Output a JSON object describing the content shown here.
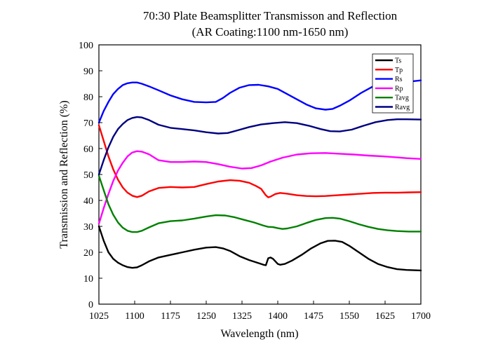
{
  "chart_data": {
    "type": "line",
    "title": "70:30 Plate Beamsplitter Transmisson and Reflection",
    "subtitle": "(AR Coating:1100 nm-1650 nm)",
    "xlabel": "Wavelength (nm)",
    "ylabel": "Transmission and Reflection (%)",
    "xlim": [
      1025,
      1700
    ],
    "ylim": [
      0,
      100
    ],
    "x_ticks": [
      "1025",
      "1100",
      "1175",
      "1250",
      "1325",
      "1400",
      "1475",
      "1550",
      "1625",
      "1700"
    ],
    "y_ticks": [
      "0",
      "10",
      "20",
      "30",
      "40",
      "50",
      "60",
      "70",
      "80",
      "90",
      "100"
    ],
    "grid": false,
    "legend_position": "top-right",
    "series": [
      {
        "name": "Ts",
        "color": "#000000",
        "points": [
          [
            1025,
            30
          ],
          [
            1035,
            24.5
          ],
          [
            1045,
            20
          ],
          [
            1055,
            17.5
          ],
          [
            1065,
            16
          ],
          [
            1075,
            15
          ],
          [
            1085,
            14.3
          ],
          [
            1095,
            14
          ],
          [
            1105,
            14.2
          ],
          [
            1115,
            15
          ],
          [
            1130,
            16.5
          ],
          [
            1150,
            18
          ],
          [
            1175,
            19
          ],
          [
            1200,
            20
          ],
          [
            1225,
            21
          ],
          [
            1250,
            21.8
          ],
          [
            1270,
            22
          ],
          [
            1285,
            21.5
          ],
          [
            1300,
            20.5
          ],
          [
            1320,
            18.5
          ],
          [
            1340,
            17
          ],
          [
            1360,
            15.8
          ],
          [
            1370,
            15.2
          ],
          [
            1375,
            15
          ],
          [
            1380,
            17.7
          ],
          [
            1385,
            18
          ],
          [
            1390,
            17.5
          ],
          [
            1395,
            16.5
          ],
          [
            1400,
            15.5
          ],
          [
            1405,
            15.2
          ],
          [
            1415,
            15.5
          ],
          [
            1430,
            16.8
          ],
          [
            1450,
            19
          ],
          [
            1470,
            21.5
          ],
          [
            1490,
            23.5
          ],
          [
            1505,
            24.4
          ],
          [
            1520,
            24.5
          ],
          [
            1535,
            24
          ],
          [
            1550,
            22.5
          ],
          [
            1570,
            20
          ],
          [
            1590,
            17.5
          ],
          [
            1610,
            15.5
          ],
          [
            1630,
            14.3
          ],
          [
            1650,
            13.5
          ],
          [
            1670,
            13.2
          ],
          [
            1700,
            13
          ]
        ]
      },
      {
        "name": "Tp",
        "color": "#ff0000",
        "points": [
          [
            1025,
            69
          ],
          [
            1035,
            63
          ],
          [
            1045,
            57
          ],
          [
            1055,
            52
          ],
          [
            1065,
            48
          ],
          [
            1075,
            45
          ],
          [
            1085,
            43
          ],
          [
            1095,
            41.8
          ],
          [
            1105,
            41.3
          ],
          [
            1115,
            41.8
          ],
          [
            1130,
            43.5
          ],
          [
            1150,
            44.8
          ],
          [
            1175,
            45.2
          ],
          [
            1200,
            45
          ],
          [
            1225,
            45.2
          ],
          [
            1250,
            46.3
          ],
          [
            1275,
            47.3
          ],
          [
            1300,
            47.8
          ],
          [
            1320,
            47.6
          ],
          [
            1340,
            46.8
          ],
          [
            1355,
            45.5
          ],
          [
            1365,
            44.5
          ],
          [
            1375,
            42
          ],
          [
            1380,
            41.2
          ],
          [
            1385,
            41.5
          ],
          [
            1395,
            42.5
          ],
          [
            1405,
            42.9
          ],
          [
            1420,
            42.6
          ],
          [
            1440,
            42
          ],
          [
            1460,
            41.7
          ],
          [
            1480,
            41.6
          ],
          [
            1500,
            41.7
          ],
          [
            1525,
            42
          ],
          [
            1550,
            42.3
          ],
          [
            1575,
            42.6
          ],
          [
            1600,
            42.9
          ],
          [
            1625,
            43
          ],
          [
            1650,
            43
          ],
          [
            1675,
            43.1
          ],
          [
            1700,
            43.2
          ]
        ]
      },
      {
        "name": "Rs",
        "color": "#0000ff",
        "points": [
          [
            1025,
            70
          ],
          [
            1035,
            74.5
          ],
          [
            1045,
            78
          ],
          [
            1055,
            81
          ],
          [
            1065,
            83
          ],
          [
            1075,
            84.5
          ],
          [
            1085,
            85.2
          ],
          [
            1095,
            85.5
          ],
          [
            1105,
            85.5
          ],
          [
            1115,
            85
          ],
          [
            1130,
            84
          ],
          [
            1150,
            82.5
          ],
          [
            1175,
            80.5
          ],
          [
            1200,
            79
          ],
          [
            1225,
            78
          ],
          [
            1250,
            77.8
          ],
          [
            1270,
            78
          ],
          [
            1285,
            79.5
          ],
          [
            1300,
            81.5
          ],
          [
            1320,
            83.5
          ],
          [
            1340,
            84.5
          ],
          [
            1360,
            84.6
          ],
          [
            1380,
            84
          ],
          [
            1400,
            83
          ],
          [
            1420,
            81
          ],
          [
            1440,
            79
          ],
          [
            1460,
            77
          ],
          [
            1480,
            75.5
          ],
          [
            1500,
            75
          ],
          [
            1515,
            75.3
          ],
          [
            1530,
            76.5
          ],
          [
            1550,
            78.5
          ],
          [
            1575,
            81.5
          ],
          [
            1600,
            84
          ],
          [
            1625,
            85.5
          ],
          [
            1650,
            86.2
          ],
          [
            1670,
            86.2
          ],
          [
            1685,
            86
          ],
          [
            1700,
            86.3
          ]
        ]
      },
      {
        "name": "Rp",
        "color": "#ff00ff",
        "points": [
          [
            1025,
            31
          ],
          [
            1035,
            37
          ],
          [
            1045,
            42.5
          ],
          [
            1055,
            47.5
          ],
          [
            1065,
            51.5
          ],
          [
            1075,
            54.5
          ],
          [
            1085,
            57
          ],
          [
            1095,
            58.5
          ],
          [
            1105,
            59
          ],
          [
            1115,
            58.8
          ],
          [
            1130,
            57.8
          ],
          [
            1150,
            55.5
          ],
          [
            1175,
            54.8
          ],
          [
            1200,
            54.8
          ],
          [
            1225,
            55
          ],
          [
            1250,
            54.8
          ],
          [
            1275,
            54
          ],
          [
            1300,
            53
          ],
          [
            1325,
            52.3
          ],
          [
            1345,
            52.5
          ],
          [
            1365,
            53.5
          ],
          [
            1385,
            55
          ],
          [
            1410,
            56.5
          ],
          [
            1440,
            57.7
          ],
          [
            1470,
            58.2
          ],
          [
            1500,
            58.3
          ],
          [
            1530,
            58
          ],
          [
            1560,
            57.7
          ],
          [
            1590,
            57.3
          ],
          [
            1620,
            57
          ],
          [
            1650,
            56.6
          ],
          [
            1670,
            56.3
          ],
          [
            1700,
            56
          ]
        ]
      },
      {
        "name": "Tavg",
        "color": "#008000",
        "points": [
          [
            1025,
            49.5
          ],
          [
            1035,
            44
          ],
          [
            1045,
            38.5
          ],
          [
            1055,
            34.5
          ],
          [
            1065,
            31.5
          ],
          [
            1075,
            29.5
          ],
          [
            1085,
            28.3
          ],
          [
            1095,
            27.8
          ],
          [
            1105,
            27.8
          ],
          [
            1115,
            28.3
          ],
          [
            1130,
            29.6
          ],
          [
            1150,
            31.2
          ],
          [
            1175,
            32
          ],
          [
            1200,
            32.3
          ],
          [
            1225,
            33
          ],
          [
            1250,
            33.8
          ],
          [
            1270,
            34.3
          ],
          [
            1290,
            34.2
          ],
          [
            1310,
            33.5
          ],
          [
            1330,
            32.5
          ],
          [
            1350,
            31.5
          ],
          [
            1370,
            30.3
          ],
          [
            1380,
            29.8
          ],
          [
            1390,
            29.7
          ],
          [
            1400,
            29.3
          ],
          [
            1410,
            29
          ],
          [
            1420,
            29.2
          ],
          [
            1440,
            30
          ],
          [
            1460,
            31.3
          ],
          [
            1480,
            32.5
          ],
          [
            1500,
            33.2
          ],
          [
            1515,
            33.3
          ],
          [
            1530,
            33
          ],
          [
            1550,
            32
          ],
          [
            1570,
            30.8
          ],
          [
            1590,
            29.8
          ],
          [
            1610,
            29
          ],
          [
            1630,
            28.5
          ],
          [
            1650,
            28.2
          ],
          [
            1675,
            28
          ],
          [
            1700,
            28
          ]
        ]
      },
      {
        "name": "Ravg",
        "color": "#000080",
        "points": [
          [
            1025,
            50
          ],
          [
            1035,
            55.5
          ],
          [
            1045,
            60.5
          ],
          [
            1055,
            64.5
          ],
          [
            1065,
            67.5
          ],
          [
            1075,
            69.5
          ],
          [
            1085,
            71
          ],
          [
            1095,
            71.8
          ],
          [
            1105,
            72.2
          ],
          [
            1115,
            72
          ],
          [
            1130,
            71
          ],
          [
            1150,
            69.2
          ],
          [
            1175,
            68
          ],
          [
            1200,
            67.5
          ],
          [
            1225,
            67
          ],
          [
            1250,
            66.3
          ],
          [
            1275,
            65.8
          ],
          [
            1295,
            66
          ],
          [
            1315,
            67
          ],
          [
            1340,
            68.3
          ],
          [
            1365,
            69.3
          ],
          [
            1390,
            69.8
          ],
          [
            1415,
            70.2
          ],
          [
            1440,
            69.8
          ],
          [
            1465,
            68.8
          ],
          [
            1490,
            67.5
          ],
          [
            1510,
            66.7
          ],
          [
            1530,
            66.6
          ],
          [
            1555,
            67.3
          ],
          [
            1580,
            68.8
          ],
          [
            1605,
            70.2
          ],
          [
            1630,
            71
          ],
          [
            1650,
            71.3
          ],
          [
            1670,
            71.3
          ],
          [
            1700,
            71.2
          ]
        ]
      }
    ]
  }
}
